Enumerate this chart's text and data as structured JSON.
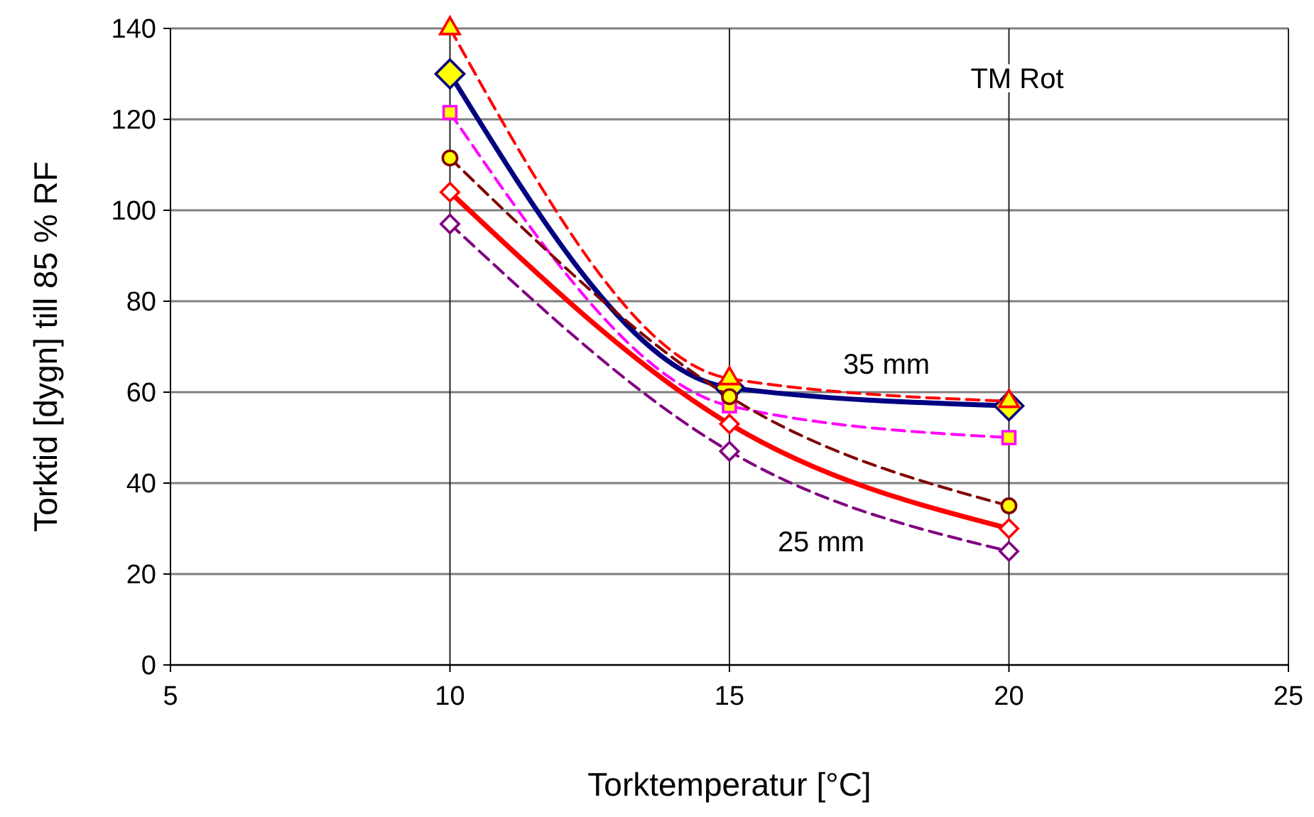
{
  "chart_data": {
    "type": "line",
    "xlabel": "Torktemperatur [°C]",
    "ylabel": "Torktid [dygn] till 85 % RF",
    "x": [
      10,
      15,
      20
    ],
    "series": [
      {
        "color": "#000080",
        "values": [
          130,
          61,
          57
        ],
        "marker": "diamond",
        "line_style": "solid"
      },
      {
        "color": "#ff0000",
        "values": [
          140,
          63,
          58
        ],
        "marker": "triangle",
        "line_style": "dashed"
      },
      {
        "color": "#ff00ff",
        "values": [
          121.5,
          57,
          50
        ],
        "marker": "square",
        "line_style": "dashed"
      },
      {
        "color": "#800000",
        "values": [
          111.5,
          59,
          35
        ],
        "marker": "circle",
        "line_style": "dashed"
      },
      {
        "color": "#ff0000",
        "values": [
          104,
          53,
          30
        ],
        "marker": "diamond",
        "line_style": "solid"
      },
      {
        "color": "#800080",
        "values": [
          97,
          47,
          25
        ],
        "marker": "diamond",
        "line_style": "dashed"
      }
    ],
    "xlim": [
      5,
      25
    ],
    "xticks": [
      5,
      10,
      15,
      20,
      25
    ],
    "ylim": [
      0,
      140
    ],
    "yticks": [
      0,
      20,
      40,
      60,
      80,
      100,
      120,
      140
    ],
    "grid": true,
    "annotations": [
      "TM Rot",
      "35 mm",
      "25 mm"
    ]
  }
}
